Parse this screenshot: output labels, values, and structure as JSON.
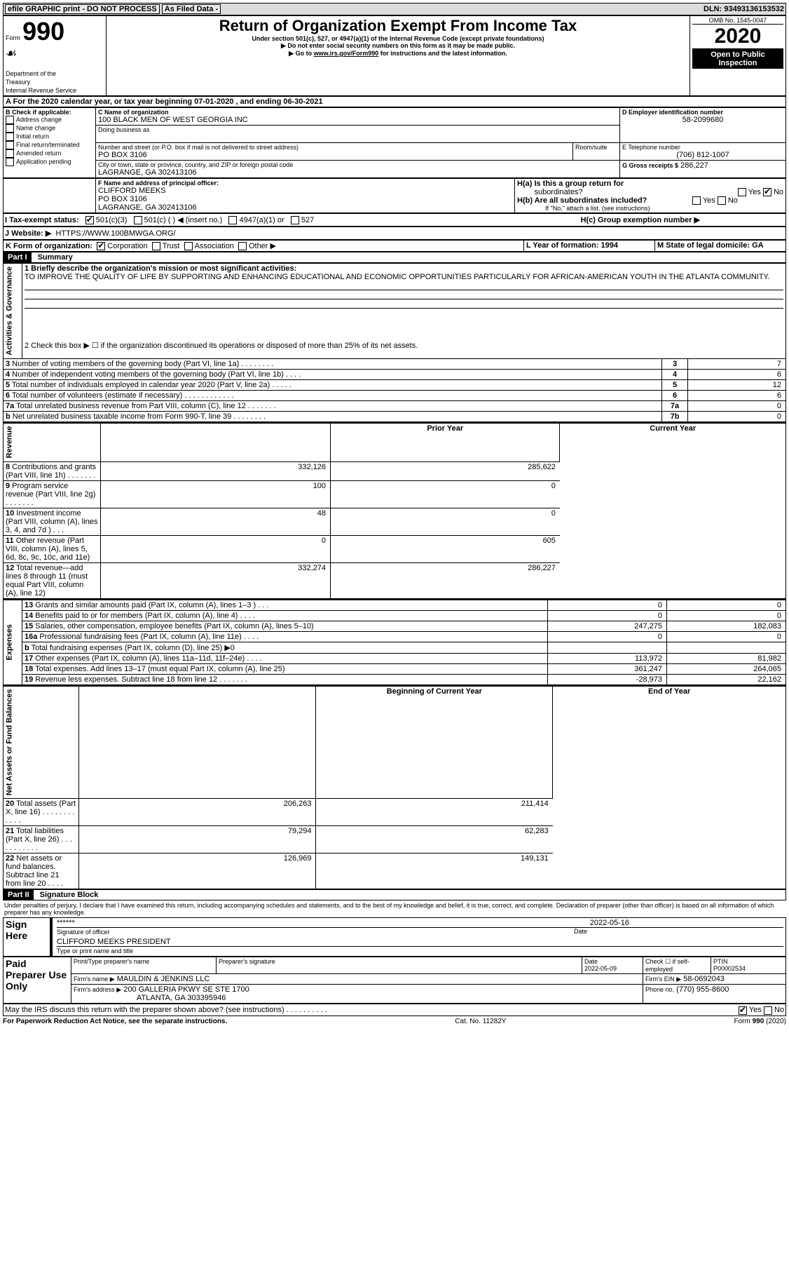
{
  "topbar": {
    "efile": "efile GRAPHIC print - DO NOT PROCESS",
    "asfiled": "As Filed Data -",
    "dln": "DLN: 93493136153532"
  },
  "header": {
    "form_prefix": "Form",
    "form_no": "990",
    "dept1": "Department of the",
    "dept2": "Treasury",
    "dept3": "Internal Revenue Service",
    "title": "Return of Organization Exempt From Income Tax",
    "subtitle": "Under section 501(c), 527, or 4947(a)(1) of the Internal Revenue Code (except private foundations)",
    "dne": "▶ Do not enter social security numbers on this form as it may be made public.",
    "goto": "▶ Go to www.irs.gov/Form990 for instructions and the latest information.",
    "omb": "OMB No. 1545-0047",
    "year": "2020",
    "open1": "Open to Public",
    "open2": "Inspection"
  },
  "A": {
    "line": "A  For the 2020 calendar year, or tax year beginning 07-01-2020   , and ending 06-30-2021"
  },
  "B": {
    "label": "B Check if applicable:",
    "opts": [
      "Address change",
      "Name change",
      "Initial return",
      "Final return/terminated",
      "Amended return",
      "Application pending"
    ]
  },
  "C": {
    "label": "C Name of organization",
    "name": "100 BLACK MEN OF WEST GEORGIA INC",
    "dba_label": "Doing business as",
    "addr_label": "Number and street (or P.O. box if mail is not delivered to street address)",
    "room_label": "Room/suite",
    "addr": "PO BOX 3106",
    "city_label": "City or town, state or province, country, and ZIP or foreign postal code",
    "city": "LAGRANGE, GA  302413106"
  },
  "D": {
    "label": "D Employer identification number",
    "val": "58-2099680"
  },
  "E": {
    "label": "E Telephone number",
    "val": "(706) 812-1007"
  },
  "G": {
    "label": "G Gross receipts $",
    "val": "286,227"
  },
  "F": {
    "label": "F  Name and address of principal officer:",
    "name": "CLIFFORD MEEKS",
    "addr1": "PO BOX 3106",
    "addr2": "LAGRANGE, GA  302413106"
  },
  "H": {
    "ha": "H(a)  Is this a group return for",
    "ha2": "subordinates?",
    "hb": "H(b)  Are all subordinates included?",
    "hbnote": "If \"No,\" attach a list. (see instructions)",
    "hc": "H(c)  Group exemption number ▶",
    "yes": "Yes",
    "no": "No"
  },
  "I": {
    "label": "I  Tax-exempt status:",
    "o1": "501(c)(3)",
    "o2": "501(c) (   ) ◀ (insert no.)",
    "o3": "4947(a)(1) or",
    "o4": "527"
  },
  "J": {
    "label": "J  Website: ▶",
    "val": "HTTPS://WWW.100BMWGA.ORG/"
  },
  "K": {
    "label": "K Form of organization:",
    "o1": "Corporation",
    "o2": "Trust",
    "o3": "Association",
    "o4": "Other ▶"
  },
  "L": {
    "label": "L Year of formation: 1994"
  },
  "M": {
    "label": "M State of legal domicile: GA"
  },
  "part1": {
    "label": "Part I",
    "title": "Summary"
  },
  "summary": {
    "l1": "1 Briefly describe the organization's mission or most significant activities:",
    "mission": "TO IMPROVE THE QUALITY OF LIFE BY SUPPORTING AND ENHANCING EDUCATIONAL AND ECONOMIC OPPORTUNITIES PARTICULARLY FOR AFRICAN-AMERICAN YOUTH IN THE ATLANTA COMMUNITY.",
    "l2": "2  Check this box ▶ ☐ if the organization discontinued its operations or disposed of more than 25% of its net assets.",
    "govlabel": "Activities & Governance",
    "revlabel": "Revenue",
    "explabel": "Expenses",
    "netlabel": "Net Assets or Fund Balances",
    "rows_gov": [
      {
        "n": "3",
        "t": "Number of voting members of the governing body (Part VI, line 1a)   .   .   .   .   .   .   .   .",
        "box": "3",
        "v": "7"
      },
      {
        "n": "4",
        "t": "Number of independent voting members of the governing body (Part VI, line 1b)   .   .   .   .",
        "box": "4",
        "v": "6"
      },
      {
        "n": "5",
        "t": "Total number of individuals employed in calendar year 2020 (Part V, line 2a)   .   .   .   .   .",
        "box": "5",
        "v": "12"
      },
      {
        "n": "6",
        "t": "Total number of volunteers (estimate if necessary)   .   .   .   .   .   .   .   .   .   .   .   .",
        "box": "6",
        "v": "6"
      },
      {
        "n": "7a",
        "t": "Total unrelated business revenue from Part VIII, column (C), line 12   .   .   .   .   .   .   .",
        "box": "7a",
        "v": "0"
      },
      {
        "n": "b",
        "t": "Net unrelated business taxable income from Form 990-T, line 39   .   .   .   .   .   .   .   .",
        "box": "7b",
        "v": "0"
      }
    ],
    "pyhdr": "Prior Year",
    "cyhdr": "Current Year",
    "rows_rev": [
      {
        "n": "8",
        "t": "Contributions and grants (Part VIII, line 1h)   .   .   .   .   .   .   .",
        "p": "332,126",
        "c": "285,622"
      },
      {
        "n": "9",
        "t": "Program service revenue (Part VIII, line 2g)   .   .   .   .   .   .   .",
        "p": "100",
        "c": "0"
      },
      {
        "n": "10",
        "t": "Investment income (Part VIII, column (A), lines 3, 4, and 7d )   .   .   .",
        "p": "48",
        "c": "0"
      },
      {
        "n": "11",
        "t": "Other revenue (Part VIII, column (A), lines 5, 6d, 8c, 9c, 10c, and 11e)",
        "p": "0",
        "c": "605"
      },
      {
        "n": "12",
        "t": "Total revenue—add lines 8 through 11 (must equal Part VIII, column (A), line 12)",
        "p": "332,274",
        "c": "286,227"
      }
    ],
    "rows_exp": [
      {
        "n": "13",
        "t": "Grants and similar amounts paid (Part IX, column (A), lines 1–3 )   .   .   .",
        "p": "0",
        "c": "0"
      },
      {
        "n": "14",
        "t": "Benefits paid to or for members (Part IX, column (A), line 4)   .   .   .   .",
        "p": "0",
        "c": "0"
      },
      {
        "n": "15",
        "t": "Salaries, other compensation, employee benefits (Part IX, column (A), lines 5–10)",
        "p": "247,275",
        "c": "182,083"
      },
      {
        "n": "16a",
        "t": "Professional fundraising fees (Part IX, column (A), line 11e)   .   .   .   .",
        "p": "0",
        "c": "0"
      },
      {
        "n": "b",
        "t": "Total fundraising expenses (Part IX, column (D), line 25) ▶0",
        "p": "",
        "c": ""
      },
      {
        "n": "17",
        "t": "Other expenses (Part IX, column (A), lines 11a–11d, 11f–24e)   .   .   .   .",
        "p": "113,972",
        "c": "81,982"
      },
      {
        "n": "18",
        "t": "Total expenses. Add lines 13–17 (must equal Part IX, column (A), line 25)",
        "p": "361,247",
        "c": "264,065"
      },
      {
        "n": "19",
        "t": "Revenue less expenses. Subtract line 18 from line 12   .   .   .   .   .   .   .",
        "p": "-28,973",
        "c": "22,162"
      }
    ],
    "bcy": "Beginning of Current Year",
    "eoy": "End of Year",
    "rows_net": [
      {
        "n": "20",
        "t": "Total assets (Part X, line 16)   .   .   .   .   .   .   .   .   .   .   .   .",
        "p": "206,263",
        "c": "211,414"
      },
      {
        "n": "21",
        "t": "Total liabilities (Part X, line 26)   .   .   .   .   .   .   .   .   .   .   .",
        "p": "79,294",
        "c": "62,283"
      },
      {
        "n": "22",
        "t": "Net assets or fund balances. Subtract line 21 from line 20   .   .   .   .",
        "p": "126,969",
        "c": "149,131"
      }
    ]
  },
  "part2": {
    "label": "Part II",
    "title": "Signature Block",
    "decl": "Under penalties of perjury, I declare that I have examined this return, including accompanying schedules and statements, and to the best of my knowledge and belief, it is true, correct, and complete. Declaration of preparer (other than officer) is based on all information of which preparer has any knowledge."
  },
  "sign": {
    "signhere": "Sign Here",
    "stars": "******",
    "siglabel": "Signature of officer",
    "date": "2022-05-16",
    "datelabel": "Date",
    "name": "CLIFFORD MEEKS PRESIDENT",
    "namelabel": "Type or print name and title"
  },
  "prep": {
    "label": "Paid Preparer Use Only",
    "pname_label": "Print/Type preparer's name",
    "psig_label": "Preparer's signature",
    "pdate_label": "Date",
    "pdate": "2022-05-09",
    "check_label": "Check ☐ if self-employed",
    "ptin_label": "PTIN",
    "ptin": "P00002534",
    "firm_label": "Firm's name   ▶",
    "firm": "MAULDIN & JENKINS LLC",
    "ein_label": "Firm's EIN ▶",
    "ein": "58-0692043",
    "faddr_label": "Firm's address ▶",
    "faddr1": "200 GALLERIA PKWY SE STE 1700",
    "faddr2": "ATLANTA, GA  303395946",
    "phone_label": "Phone no.",
    "phone": "(770) 955-8600"
  },
  "discuss": "May the IRS discuss this return with the preparer shown above? (see instructions)   .   .   .   .   .   .   .   .   .   .",
  "yes": "Yes",
  "no": "No",
  "footer": {
    "pra": "For Paperwork Reduction Act Notice, see the separate instructions.",
    "cat": "Cat. No. 11282Y",
    "form": "Form 990 (2020)"
  }
}
